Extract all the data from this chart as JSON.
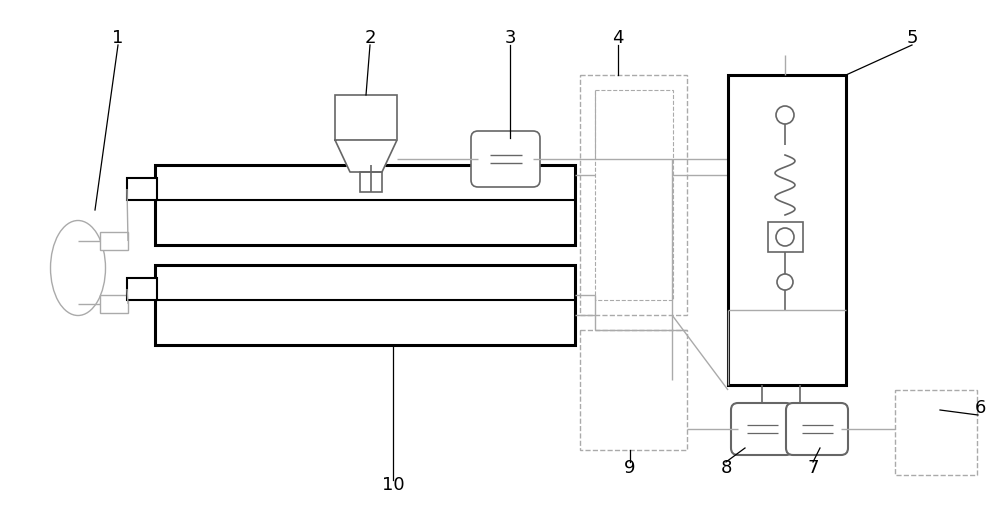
{
  "bg_color": "#ffffff",
  "lc": "#000000",
  "gc": "#aaaaaa",
  "dgc": "#666666",
  "figsize": [
    10.0,
    5.14
  ],
  "dpi": 100
}
